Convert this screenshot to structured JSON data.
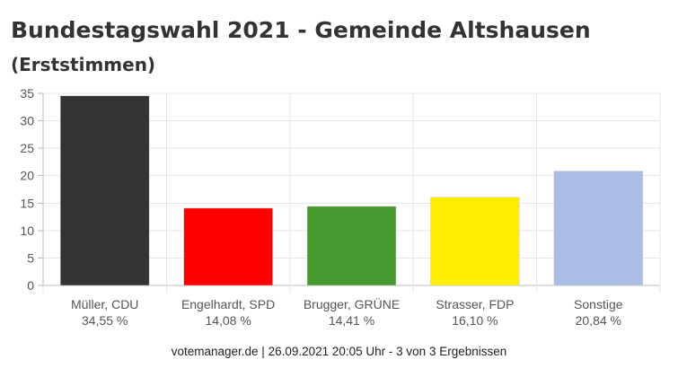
{
  "header": {
    "title": "Bundestagswahl 2021 - Gemeinde Altshausen",
    "subtitle": "(Erststimmen)"
  },
  "chart_data": {
    "type": "bar",
    "categories": [
      "Müller, CDU",
      "Engelhardt, SPD",
      "Brugger, GRÜNE",
      "Strasser, FDP",
      "Sonstige"
    ],
    "values": [
      34.55,
      14.08,
      14.41,
      16.1,
      20.84
    ],
    "value_labels": [
      "34,55 %",
      "14,08 %",
      "14,41 %",
      "16,10 %",
      "20,84 %"
    ],
    "colors": [
      "#333333",
      "#ff0000",
      "#479a2f",
      "#ffed00",
      "#aabde5"
    ],
    "yticks": [
      "0",
      "5",
      "10",
      "15",
      "20",
      "25",
      "30",
      "35"
    ],
    "ylim": [
      0,
      35
    ],
    "grid": true,
    "xlabel": "",
    "ylabel": ""
  },
  "footer": {
    "text": "votemanager.de | 26.09.2021 20:05 Uhr - 3 von 3 Ergebnissen"
  }
}
